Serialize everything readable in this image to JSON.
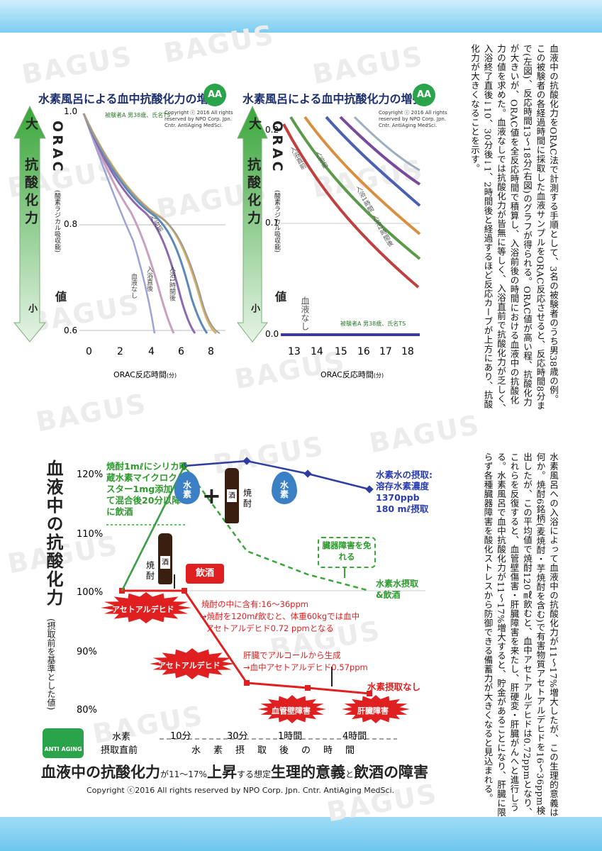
{
  "watermark": "BAGUS",
  "article_top": "血液中の抗酸化力をORAC法で計測する手順として、3名の被験者のうち男38歳の例。この被験者の各経過時間に採取した血液サンプルをORAC反応させると、反応時間8分まで(左図)、反応時間13～18分(右図)のグラフが得られる。ORAC値が高い程、抗酸化力が大きいが、ORAC値を全反応時間で積算し、入浴前後の時間における血液中の抗酸化力の値を求めた。血液なしでは抗酸化力が皆無に等しく、入浴直前で抗酸化力が乏しく、入浴終了直後↓10、30分後↓1、2時間後と経過するほど反応カーブが上方にあり、抗酸化力が大きくなることを示す。",
  "article_bottom": "水素風呂への入浴によって血液中の抗酸化力が11～17%増大したが、この生理的意義は何か。焼酎6銘柄(麦焼酎・芋焼酎を含む)で有害物質アセトアルデヒドを16～36ppm検出したが、この平均値で焼酎120㎖飲むと、血中アセトアルデヒドは0.72ppmとなり、これらを反復すると、血管壁傷害・肝臓障害を来たし、肝硬変・肝臓がんへと進行しうる。水素風呂で血中抗酸化力が11～17%増大すると、貯金があることになり、肝臓に限らず各種臓器障害を酸化ストレスから防御できる備蓄力が大きくなると見込まれる。",
  "left_chart": {
    "title": "水素風呂による血中抗酸化力の増強",
    "logo": "AA",
    "subject": "被験者A 男38歳、氏名TS",
    "copyright": "Copyright ⓒ 2016 All rights\nreserved by NPO Corp. Jpn.\nCntr. AntiAging MedSci.",
    "arrow_top": "大",
    "arrow_main": "抗酸化力",
    "arrow_bottom": "小",
    "axis_label": "ORAC",
    "axis_sub": "(酸素ラジカル吸収能)",
    "axis_suffix": "値",
    "xlabel": "ORAC反応時間",
    "xunit": "(分)",
    "y_ticks": [
      "1.0",
      "0.8",
      "0.6"
    ],
    "x_ticks": [
      "0",
      "2",
      "4",
      "6",
      "8"
    ],
    "curve_labels": [
      "入浴前",
      "血液なし",
      "入浴直後",
      "入浴1時間後"
    ]
  },
  "right_chart": {
    "title": "水素風呂による血中抗酸化力の増強",
    "logo": "AA",
    "subject": "被験者A 男38歳、氏名TS",
    "copyright": "Copyright ⓒ 2016 All rights\nreserved by NPO Corp. Jpn.\nCntr. AntiAging MedSci.",
    "arrow_top": "大",
    "arrow_main": "抗酸化力",
    "arrow_bottom": "小",
    "axis_label": "ORAC",
    "axis_sub": "(酸素ラジカル吸収能)",
    "axis_suffix": "値",
    "xlabel": "ORAC反応時間",
    "xunit": "(分)",
    "y_ticks": [
      "0.2",
      "0.1",
      "0.0"
    ],
    "x_ticks": [
      "13",
      "14",
      "15",
      "16",
      "17",
      "18"
    ],
    "blood_none": "血液なし",
    "curve_labels": [
      "入浴直前",
      "入浴前",
      "入浴1時間",
      "入浴2時間後"
    ]
  },
  "lower_chart": {
    "ylabel": "血液中の抗酸化力",
    "ylabel_sub": "(摂取前を基準とした値)",
    "y_ticks": [
      "120%",
      "110%",
      "100%",
      "90%",
      "80%"
    ],
    "note_shochu": "焼酎1mℓにシリカ吸蔵水素マイクロクラスター1mg添加して混合後20分以降に飲酒",
    "note_hydrogen": "水素水の摂取: 溶存水素濃度1370ppb 180 mℓ摂取",
    "drop_h2": "水素",
    "bottle1": "酒",
    "bottle1_label": "焼酎",
    "bottle2": "酒",
    "bottle2_label": "焼酎",
    "plus": "+",
    "drinking": "飲酒",
    "organ_box": "臓器障害を免れる",
    "series_label_mix": "水素水摂取&飲酒",
    "series_label_none": "水素摂取なし",
    "burst1": "アセトアルデヒド",
    "burst2": "アセトアルデヒド",
    "burst3": "血管壁障害",
    "burst4": "肝臓障害",
    "note_acet1": "焼酎の中に含有:16～36ppm",
    "note_acet2": "→焼酎を120mℓ飲むと、体重60kgでは血中",
    "note_acet3": "アセトアルデヒド0.72 ppmとなる",
    "note_liver1": "肝臓でアルコールから生成",
    "note_liver2": "→血中アセトアルデヒド0.57ppm",
    "x_row1": "水素",
    "x_row2": "摂取直前",
    "x_ticks": [
      "10分",
      "30分",
      "1時間",
      "4時間"
    ],
    "x_caption": "水素摂取後の時間",
    "colors": {
      "blue": "#2e3da0",
      "green": "#3aa63a",
      "red": "#e02020"
    }
  },
  "footer": {
    "title_parts": [
      "血液中の",
      "抗酸化力",
      "が11～17%",
      "上昇",
      "する想定",
      "生理的意義",
      "と",
      "飲酒の障害"
    ],
    "copyright": "Copyright ⓒ2016 All rights reserved by NPO Corp. Jpn. Cntr. AntiAging MedSci.",
    "logo": "ANTI AGING"
  }
}
